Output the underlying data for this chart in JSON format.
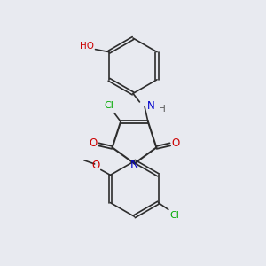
{
  "background_color": "#e8eaf0",
  "bond_color": "#2d2d2d",
  "atom_colors": {
    "N": "#0000cc",
    "O": "#cc0000",
    "Cl": "#00aa00",
    "H": "#555555",
    "C": "#2d2d2d"
  },
  "figsize": [
    3.0,
    3.0
  ],
  "dpi": 100
}
